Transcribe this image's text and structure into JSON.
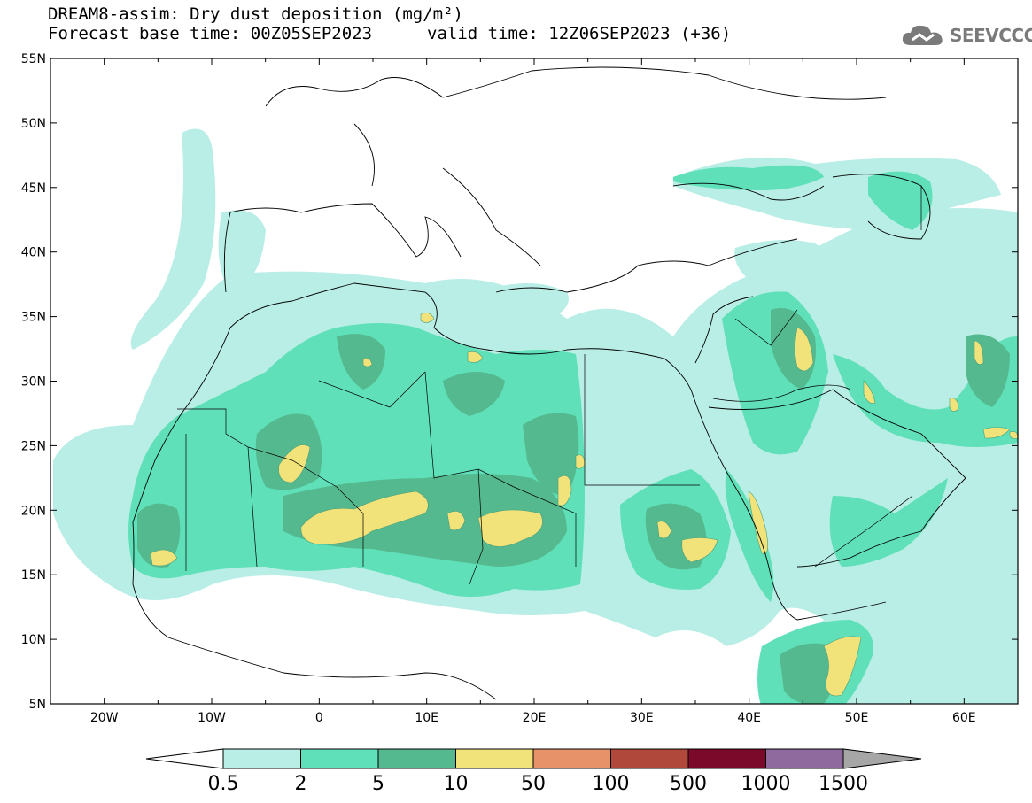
{
  "header": {
    "title_line1": "DREAM8-assim: Dry dust deposition (mg/m²)",
    "base_time": "Forecast base time: 00Z05SEP2023",
    "valid_time": "valid time: 12Z06SEP2023 (+36)",
    "logo_text": "SEEVCCC",
    "logo_icon": "cloud-icon"
  },
  "map": {
    "lon_range": [
      -25,
      65
    ],
    "lat_range": [
      5,
      55
    ],
    "lon_ticks": [
      {
        "lon": -20,
        "label": "20W"
      },
      {
        "lon": -10,
        "label": "10W"
      },
      {
        "lon": 0,
        "label": "0"
      },
      {
        "lon": 10,
        "label": "10E"
      },
      {
        "lon": 20,
        "label": "20E"
      },
      {
        "lon": 30,
        "label": "30E"
      },
      {
        "lon": 40,
        "label": "40E"
      },
      {
        "lon": 50,
        "label": "50E"
      },
      {
        "lon": 60,
        "label": "60E"
      }
    ],
    "lat_ticks": [
      {
        "lat": 55,
        "label": "55N"
      },
      {
        "lat": 50,
        "label": "50N"
      },
      {
        "lat": 45,
        "label": "45N"
      },
      {
        "lat": 40,
        "label": "40N"
      },
      {
        "lat": 35,
        "label": "35N"
      },
      {
        "lat": 30,
        "label": "30N"
      },
      {
        "lat": 25,
        "label": "25N"
      },
      {
        "lat": 20,
        "label": "20N"
      },
      {
        "lat": 15,
        "label": "15N"
      },
      {
        "lat": 10,
        "label": "10N"
      },
      {
        "lat": 5,
        "label": "5N"
      }
    ]
  },
  "colorbar": {
    "labels": [
      "0.5",
      "2",
      "5",
      "10",
      "50",
      "100",
      "500",
      "1000",
      "1500"
    ],
    "colors": [
      "#b9eee6",
      "#5fe0b8",
      "#55b98f",
      "#f2e27a",
      "#e8926a",
      "#b0483c",
      "#7b0a2a",
      "#8f6a9e"
    ],
    "under_color": "#ffffff",
    "over_color": "#a6a6a6"
  }
}
